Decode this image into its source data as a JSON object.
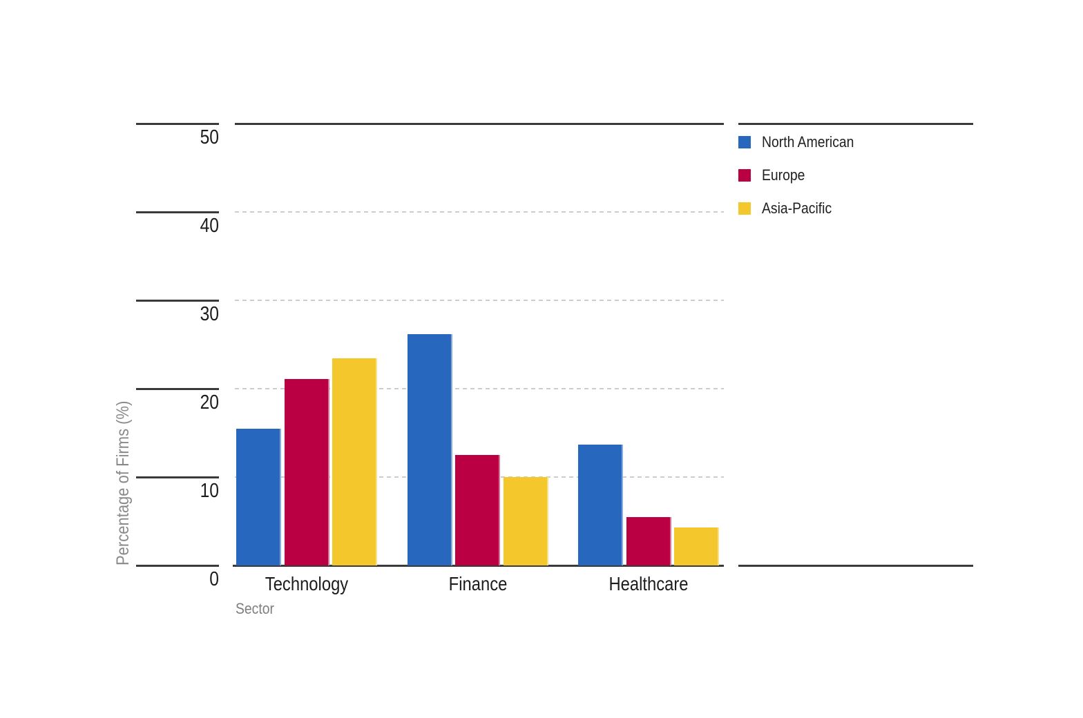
{
  "chart_data": {
    "type": "bar",
    "title": "",
    "categories": [
      "Technology",
      "Finance",
      "Healthcare"
    ],
    "series": [
      {
        "name": "North American",
        "color": "#2767be",
        "values": [
          15.5,
          26.2,
          13.7
        ]
      },
      {
        "name": "Europe",
        "color": "#ba0042",
        "values": [
          21.1,
          12.5,
          5.5
        ]
      },
      {
        "name": "Asia-Pacific",
        "color": "#f4c72d",
        "values": [
          23.4,
          10.0,
          4.3
        ]
      }
    ],
    "xlabel": "Sector",
    "ylabel": "Percentage of Firms (%)",
    "ylim": [
      0,
      50
    ],
    "yticks": [
      "0",
      "10",
      "20",
      "30",
      "40",
      "50"
    ],
    "grid": "horizontal dashed gridlines at 10, 20, 30, 40; solid dark rules at 0 and 50",
    "legend_position": "right",
    "legend": [
      {
        "label": "North American",
        "color": "#2767be"
      },
      {
        "label": "Europe",
        "color": "#ba0042"
      },
      {
        "label": "Asia-Pacific",
        "color": "#f4c72d"
      }
    ]
  },
  "colors": {
    "bar_blue": "#2767be",
    "bar_red": "#ba0042",
    "bar_yellow": "#f4c72d",
    "axis_line": "#3a3a3a",
    "gridline": "#cdcdcd",
    "text_dark": "#1c1c1c",
    "text_gray": "#7e7e7e",
    "background": "#ffffff"
  }
}
